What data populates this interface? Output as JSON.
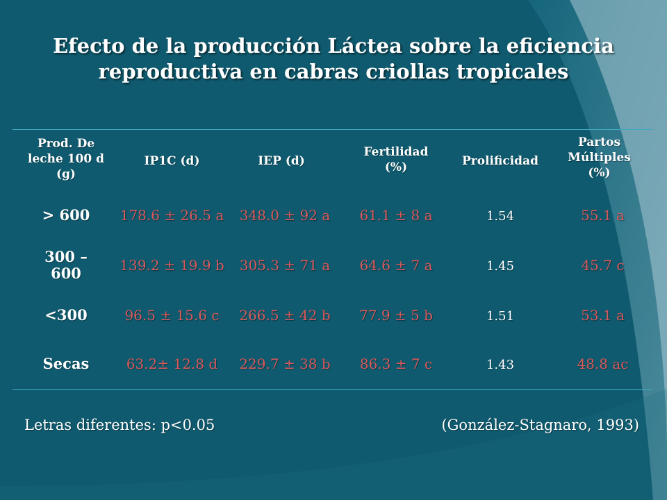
{
  "slide": {
    "title_line1": "Efecto de  la producción Láctea sobre la eficiencia",
    "title_line2": "reproductiva en cabras criollas tropicales"
  },
  "table": {
    "headers": [
      "Prod. De leche 100 d (g)",
      "IP1C (d)",
      "IEP (d)",
      "Fertilidad (%)",
      "Prolificidad",
      "Partos Múltiples (%)"
    ],
    "rows": [
      [
        "> 600",
        "178.6 ± 26.5 a",
        "348.0 ± 92 a",
        "61.1 ± 8 a",
        "1.54",
        "55.1 a"
      ],
      [
        "300 – 600",
        "139.2 ± 19.9 b",
        "305.3 ± 71 a",
        "64.6 ± 7 a",
        "1.45",
        "45.7 c"
      ],
      [
        "<300",
        "96.5 ± 15.6 c",
        "266.5 ± 42 b",
        "77.9 ± 5 b",
        "1.51",
        "53.1 a"
      ],
      [
        "Secas",
        "63.2± 12.8 d",
        "229.7 ± 38 b",
        "86.3 ± 7 c",
        "1.43",
        "48.8 ac"
      ]
    ]
  },
  "footer": {
    "note": "Letras diferentes: p<0.05",
    "citation": "(González-Stagnaro, 1993)"
  },
  "colors": {
    "background": "#0f5a6e",
    "value_text": "#d9595b",
    "rule": "#3fa8bf"
  }
}
